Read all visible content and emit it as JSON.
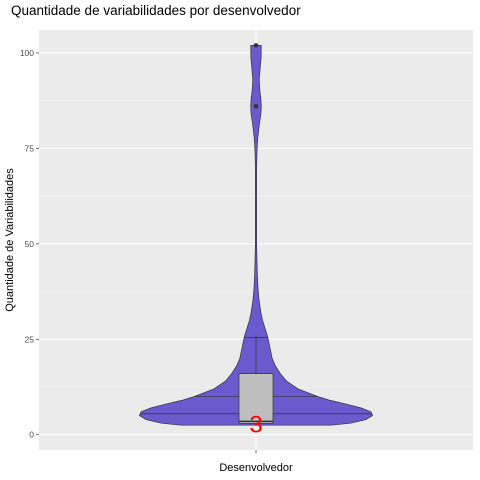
{
  "chart_data": {
    "type": "violin",
    "title": "Quantidade de variabilidades por desenvolvedor",
    "xlabel": "Desenvolvedor",
    "ylabel": "Quantidade de Variabilidades",
    "categories": [
      ""
    ],
    "ylim": [
      -4,
      106
    ],
    "yticks": [
      0,
      25,
      50,
      75,
      100
    ],
    "ytick_labels": [
      "0",
      "25",
      "50",
      "75",
      "100"
    ],
    "grid": true,
    "violin": {
      "fill": "#6a5acd",
      "y_min": 2.5,
      "y_max": 102,
      "profile": [
        [
          2.5,
          0.46
        ],
        [
          3,
          0.58
        ],
        [
          4,
          0.68
        ],
        [
          5,
          0.72
        ],
        [
          6,
          0.71
        ],
        [
          7,
          0.65
        ],
        [
          8,
          0.56
        ],
        [
          9,
          0.46
        ],
        [
          10,
          0.38
        ],
        [
          12,
          0.26
        ],
        [
          14,
          0.19
        ],
        [
          16,
          0.15
        ],
        [
          18,
          0.12
        ],
        [
          20,
          0.1
        ],
        [
          22,
          0.09
        ],
        [
          24,
          0.08
        ],
        [
          26,
          0.07
        ],
        [
          28,
          0.055
        ],
        [
          30,
          0.04
        ],
        [
          32,
          0.03
        ],
        [
          35,
          0.02
        ],
        [
          38,
          0.013
        ],
        [
          42,
          0.008
        ],
        [
          50,
          0.004
        ],
        [
          60,
          0.004
        ],
        [
          70,
          0.004
        ],
        [
          75,
          0.007
        ],
        [
          78,
          0.012
        ],
        [
          81,
          0.02
        ],
        [
          84,
          0.03
        ],
        [
          86,
          0.033
        ],
        [
          88,
          0.03
        ],
        [
          90,
          0.024
        ],
        [
          93,
          0.02
        ],
        [
          96,
          0.026
        ],
        [
          99,
          0.032
        ],
        [
          102,
          0.032
        ]
      ],
      "inner_lines": [
        5.5,
        10,
        25.5
      ]
    },
    "boxplot": {
      "fill": "#bebebe",
      "q1": 3,
      "median": 3.5,
      "q3": 16,
      "whisker_low": 2.5,
      "whisker_high": 26
    },
    "outliers": [
      86,
      102
    ],
    "annotation": {
      "text": "3",
      "y": 3,
      "color": "#ff0000"
    }
  }
}
